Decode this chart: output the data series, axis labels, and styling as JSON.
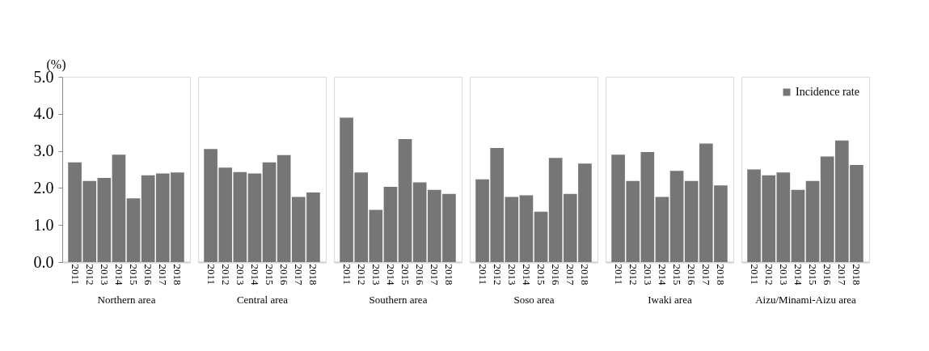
{
  "chart_data": [
    {
      "type": "bar",
      "xlabel": "Northern area",
      "ylabel": "(%)",
      "categories": [
        "2011",
        "2012",
        "2013",
        "2014",
        "2015",
        "2016",
        "2017",
        "2018"
      ],
      "series": [
        {
          "color": "#767676",
          "values": [
            2.69,
            2.19,
            2.27,
            2.9,
            1.72,
            2.34,
            2.39,
            2.42
          ]
        }
      ],
      "ylim": [
        0,
        5
      ],
      "yticks": [
        {
          "value": 0,
          "label": "0.0"
        },
        {
          "value": 1,
          "label": "1.0"
        },
        {
          "value": 2,
          "label": "2.0"
        },
        {
          "value": 3,
          "label": "3.0"
        },
        {
          "value": 4,
          "label": "4.0"
        },
        {
          "value": 5,
          "label": "5.0"
        }
      ]
    },
    {
      "type": "bar",
      "xlabel": "Central area",
      "categories": [
        "2011",
        "2012",
        "2013",
        "2014",
        "2015",
        "2016",
        "2017",
        "2018"
      ],
      "series": [
        {
          "color": "#767676",
          "values": [
            3.05,
            2.55,
            2.43,
            2.39,
            2.69,
            2.89,
            1.76,
            1.88
          ]
        }
      ],
      "ylim": [
        0,
        5
      ],
      "tick_labels": "x"
    },
    {
      "type": "bar",
      "xlabel": "Southern area",
      "categories": [
        "2011",
        "2012",
        "2013",
        "2014",
        "2015",
        "2016",
        "2017",
        "2018"
      ],
      "series": [
        {
          "color": "#767676",
          "values": [
            3.9,
            2.42,
            1.41,
            2.03,
            3.32,
            2.15,
            1.95,
            1.84
          ]
        }
      ],
      "ylim": [
        0,
        5
      ],
      "tick_labels": "x"
    },
    {
      "type": "bar",
      "xlabel": "Soso area",
      "categories": [
        "2011",
        "2012",
        "2013",
        "2014",
        "2015",
        "2016",
        "2017",
        "2018"
      ],
      "series": [
        {
          "color": "#767676",
          "values": [
            2.23,
            3.08,
            1.76,
            1.8,
            1.36,
            2.81,
            1.84,
            2.66
          ]
        }
      ],
      "ylim": [
        0,
        5
      ],
      "tick_labels": "x"
    },
    {
      "type": "bar",
      "xlabel": "Iwaki area",
      "categories": [
        "2011",
        "2012",
        "2013",
        "2014",
        "2015",
        "2016",
        "2017",
        "2018"
      ],
      "series": [
        {
          "color": "#767676",
          "values": [
            2.9,
            2.19,
            2.97,
            1.76,
            2.46,
            2.19,
            3.2,
            2.07
          ]
        }
      ],
      "ylim": [
        0,
        5
      ],
      "tick_labels": "x"
    },
    {
      "type": "bar",
      "xlabel": "Aizu/Minami-Aizu area",
      "categories": [
        "2011",
        "2012",
        "2013",
        "2014",
        "2015",
        "2016",
        "2017",
        "2018"
      ],
      "series": [
        {
          "name": "Incidence rate",
          "color": "#767676",
          "values": [
            2.5,
            2.34,
            2.42,
            1.95,
            2.19,
            2.85,
            3.28,
            2.62
          ]
        }
      ],
      "ylim": [
        0,
        5
      ],
      "tick_labels": "x",
      "legend": "top right"
    }
  ]
}
